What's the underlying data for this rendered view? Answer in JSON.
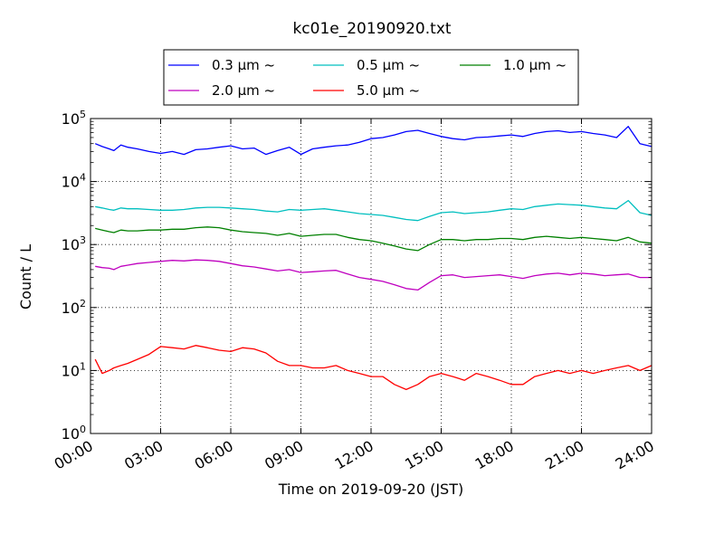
{
  "chart_data": {
    "type": "line",
    "title": "kc01e_20190920.txt",
    "xlabel": "Time on 2019-09-20 (JST)",
    "ylabel": "Count / L",
    "xlim": [
      0,
      24
    ],
    "ylim": [
      1,
      100000
    ],
    "yscale": "log",
    "grid": true,
    "legend_position": "top",
    "x_ticks": [
      "00:00",
      "03:00",
      "06:00",
      "09:00",
      "12:00",
      "15:00",
      "18:00",
      "21:00",
      "24:00"
    ],
    "y_ticks": [
      {
        "base": "10",
        "exp": "0"
      },
      {
        "base": "10",
        "exp": "1"
      },
      {
        "base": "10",
        "exp": "2"
      },
      {
        "base": "10",
        "exp": "3"
      },
      {
        "base": "10",
        "exp": "4"
      },
      {
        "base": "10",
        "exp": "5"
      }
    ],
    "x": [
      0.2,
      0.5,
      0.8,
      1.0,
      1.3,
      1.6,
      2.0,
      2.5,
      3.0,
      3.5,
      4.0,
      4.5,
      5.0,
      5.5,
      6.0,
      6.5,
      7.0,
      7.5,
      8.0,
      8.5,
      9.0,
      9.5,
      10.0,
      10.5,
      11.0,
      11.5,
      12.0,
      12.5,
      13.0,
      13.5,
      14.0,
      14.5,
      15.0,
      15.5,
      16.0,
      16.5,
      17.0,
      17.5,
      18.0,
      18.5,
      19.0,
      19.5,
      20.0,
      20.5,
      21.0,
      21.5,
      22.0,
      22.5,
      23.0,
      23.5,
      24.0
    ],
    "series": [
      {
        "name": "0.3 μm ~",
        "color": "#0000ff",
        "values": [
          40000,
          36000,
          33000,
          31000,
          38000,
          35000,
          33000,
          30000,
          28000,
          30000,
          27000,
          32000,
          33000,
          35000,
          37000,
          33000,
          34000,
          27000,
          31000,
          35000,
          27000,
          33000,
          35000,
          37000,
          38000,
          42000,
          48000,
          50000,
          55000,
          62000,
          65000,
          58000,
          52000,
          48000,
          46000,
          50000,
          51000,
          53000,
          55000,
          52000,
          58000,
          62000,
          64000,
          60000,
          62000,
          58000,
          55000,
          50000,
          75000,
          40000,
          36000
        ]
      },
      {
        "name": "0.5 μm ~",
        "color": "#00bfbf",
        "values": [
          4000,
          3800,
          3600,
          3500,
          3800,
          3700,
          3700,
          3600,
          3500,
          3500,
          3600,
          3800,
          3900,
          3900,
          3800,
          3700,
          3600,
          3400,
          3300,
          3600,
          3500,
          3600,
          3700,
          3500,
          3300,
          3100,
          3000,
          2900,
          2700,
          2500,
          2400,
          2800,
          3200,
          3300,
          3100,
          3200,
          3300,
          3500,
          3700,
          3600,
          4000,
          4200,
          4400,
          4300,
          4200,
          4000,
          3800,
          3700,
          5000,
          3200,
          2900
        ]
      },
      {
        "name": "1.0 μm ~",
        "color": "#008000",
        "values": [
          1800,
          1700,
          1600,
          1550,
          1700,
          1650,
          1650,
          1700,
          1700,
          1750,
          1750,
          1850,
          1900,
          1850,
          1700,
          1600,
          1550,
          1500,
          1400,
          1500,
          1350,
          1400,
          1450,
          1450,
          1300,
          1200,
          1150,
          1050,
          950,
          850,
          800,
          1000,
          1200,
          1200,
          1150,
          1200,
          1200,
          1250,
          1250,
          1200,
          1300,
          1350,
          1300,
          1250,
          1300,
          1250,
          1200,
          1150,
          1300,
          1100,
          1050
        ]
      },
      {
        "name": "2.0 μm ~",
        "color": "#bf00bf",
        "values": [
          450,
          430,
          420,
          400,
          450,
          470,
          500,
          520,
          540,
          560,
          550,
          570,
          560,
          540,
          500,
          460,
          440,
          410,
          380,
          400,
          360,
          370,
          380,
          390,
          340,
          300,
          280,
          260,
          230,
          200,
          190,
          250,
          320,
          330,
          300,
          310,
          320,
          330,
          310,
          290,
          320,
          340,
          350,
          330,
          350,
          340,
          320,
          330,
          340,
          300,
          300
        ]
      },
      {
        "name": "5.0 μm ~",
        "color": "#ff0000",
        "values": [
          15,
          9,
          10,
          11,
          12,
          13,
          15,
          18,
          24,
          23,
          22,
          25,
          23,
          21,
          20,
          23,
          22,
          19,
          14,
          12,
          12,
          11,
          11,
          12,
          10,
          9,
          8,
          8,
          6,
          5,
          6,
          8,
          9,
          8,
          7,
          9,
          8,
          7,
          6,
          6,
          8,
          9,
          10,
          9,
          10,
          9,
          10,
          11,
          12,
          10,
          12
        ]
      }
    ]
  }
}
